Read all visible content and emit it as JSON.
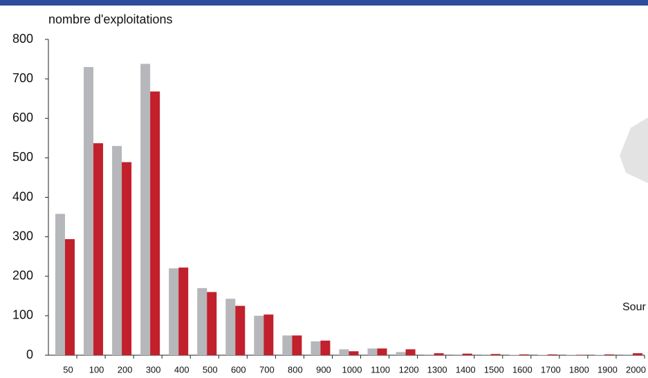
{
  "chart_data": {
    "type": "bar",
    "y_label": "nombre d'exploitations",
    "annotation": "Sour",
    "categories": [
      "50",
      "100",
      "200",
      "300",
      "400",
      "500",
      "600",
      "700",
      "800",
      "900",
      "1000",
      "1100",
      "1200",
      "1300",
      "1400",
      "1500",
      "1600",
      "1700",
      "1800",
      "1900",
      "2000"
    ],
    "series": [
      {
        "color": "#b5b7ba",
        "values": [
          358,
          730,
          530,
          738,
          220,
          170,
          143,
          100,
          50,
          35,
          15,
          17,
          8,
          2,
          2,
          2,
          1,
          1,
          1,
          1,
          2
        ]
      },
      {
        "color": "#c1202c",
        "values": [
          294,
          537,
          489,
          668,
          222,
          160,
          125,
          103,
          50,
          37,
          10,
          17,
          15,
          5,
          4,
          3,
          2,
          2,
          1,
          2,
          5
        ]
      }
    ],
    "ylim": [
      0,
      800
    ],
    "yticks": [
      0,
      100,
      200,
      300,
      400,
      500,
      600,
      700,
      800
    ]
  }
}
